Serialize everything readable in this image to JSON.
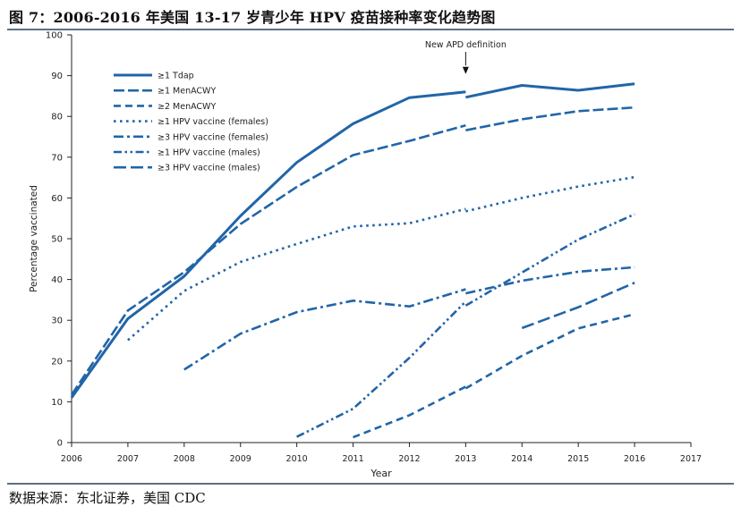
{
  "header": {
    "title": "图 7：2006-2016 年美国 13-17 岁青少年 HPV 疫苗接种率变化趋势图"
  },
  "footer": {
    "source": "数据来源：东北证券，美国 CDC"
  },
  "colors": {
    "series": "#2165a8",
    "axis": "#222222",
    "rule": "#5c6f82"
  },
  "chart_data": {
    "type": "line",
    "title": "",
    "xlabel": "Year",
    "ylabel": "Percentage vaccinated",
    "xlim": [
      2006,
      2017
    ],
    "ylim": [
      0,
      100
    ],
    "x_ticks": [
      2006,
      2007,
      2008,
      2009,
      2010,
      2011,
      2012,
      2013,
      2014,
      2015,
      2016,
      2017
    ],
    "y_ticks": [
      0,
      10,
      20,
      30,
      40,
      50,
      60,
      70,
      80,
      90,
      100
    ],
    "grid": false,
    "legend_position": "top-left",
    "annotation": {
      "text": "New APD definition",
      "x": 2013
    },
    "series": [
      {
        "name": "≥1 Tdap",
        "style": "solid",
        "segments": [
          [
            [
              2006,
              11
            ],
            [
              2007,
              30.4
            ],
            [
              2008,
              40.8
            ],
            [
              2009,
              55.6
            ],
            [
              2010,
              68.7
            ],
            [
              2011,
              78.2
            ],
            [
              2012,
              84.6
            ],
            [
              2013,
              86
            ]
          ],
          [
            [
              2013,
              84.7
            ],
            [
              2014,
              87.6
            ],
            [
              2015,
              86.4
            ],
            [
              2016,
              88
            ]
          ]
        ]
      },
      {
        "name": "≥1 MenACWY",
        "style": "dash",
        "segments": [
          [
            [
              2006,
              11.7
            ],
            [
              2007,
              32.4
            ],
            [
              2008,
              41.8
            ],
            [
              2009,
              53.6
            ],
            [
              2010,
              62.7
            ],
            [
              2011,
              70.5
            ],
            [
              2012,
              74
            ],
            [
              2013,
              77.8
            ]
          ],
          [
            [
              2013,
              76.6
            ],
            [
              2014,
              79.3
            ],
            [
              2015,
              81.3
            ],
            [
              2016,
              82.2
            ]
          ]
        ]
      },
      {
        "name": "≥2 MenACWY",
        "style": "short-dash",
        "segments": [
          [
            [
              2011,
              1.3
            ],
            [
              2012,
              6.7
            ],
            [
              2013,
              13.7
            ]
          ],
          [
            [
              2013,
              13.3
            ],
            [
              2014,
              21.3
            ],
            [
              2015,
              28
            ],
            [
              2016,
              31.5
            ]
          ]
        ]
      },
      {
        "name": "≥1 HPV vaccine (females)",
        "style": "dot",
        "segments": [
          [
            [
              2007,
              25.1
            ],
            [
              2008,
              37.2
            ],
            [
              2009,
              44.3
            ],
            [
              2010,
              48.7
            ],
            [
              2011,
              53
            ],
            [
              2012,
              53.8
            ],
            [
              2013,
              57.3
            ]
          ],
          [
            [
              2013,
              56.7
            ],
            [
              2014,
              60
            ],
            [
              2015,
              62.8
            ],
            [
              2016,
              65.1
            ]
          ]
        ]
      },
      {
        "name": "≥3 HPV vaccine (females)",
        "style": "dash-dot",
        "segments": [
          [
            [
              2008,
              17.9
            ],
            [
              2009,
              26.7
            ],
            [
              2010,
              32
            ],
            [
              2011,
              34.8
            ],
            [
              2012,
              33.4
            ],
            [
              2013,
              37.6
            ]
          ],
          [
            [
              2013,
              36.6
            ],
            [
              2014,
              39.7
            ],
            [
              2015,
              41.9
            ],
            [
              2016,
              43
            ]
          ]
        ]
      },
      {
        "name": "≥1 HPV vaccine (males)",
        "style": "dash-dot-dot",
        "segments": [
          [
            [
              2010,
              1.4
            ],
            [
              2011,
              8.3
            ],
            [
              2012,
              20.8
            ],
            [
              2013,
              34.6
            ]
          ],
          [
            [
              2013,
              33.6
            ],
            [
              2014,
              41.7
            ],
            [
              2015,
              49.8
            ],
            [
              2016,
              56
            ]
          ]
        ]
      },
      {
        "name": "≥3 HPV vaccine (males)",
        "style": "long-dash",
        "segments": [
          [
            [
              2014,
              28.1
            ],
            [
              2015,
              33.2
            ],
            [
              2016,
              39.2
            ]
          ]
        ]
      }
    ]
  }
}
